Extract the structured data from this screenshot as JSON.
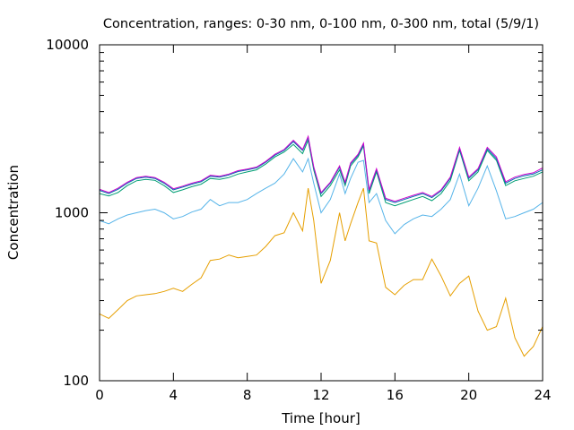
{
  "chart_data": {
    "type": "line",
    "title": "Concentration, ranges: 0-30 nm, 0-100 nm, 0-300 nm, total (5/9/1)",
    "xlabel": "Time [hour]",
    "ylabel": "Concentration",
    "xlim": [
      0,
      24
    ],
    "ylim": [
      100,
      10000
    ],
    "yscale": "log",
    "grid": false,
    "legend": "none",
    "xticks": [
      0,
      4,
      8,
      12,
      16,
      20,
      24
    ],
    "xtick_labels": [
      "0",
      "4",
      "8",
      "12",
      "16",
      "20",
      "24"
    ],
    "yticks": [
      100,
      1000,
      10000
    ],
    "ytick_labels": [
      "100",
      "1000",
      "10000"
    ],
    "series": [
      {
        "color": "#e69f00",
        "x": [
          0,
          0.5,
          1,
          1.5,
          2,
          2.5,
          3,
          3.5,
          4,
          4.5,
          5,
          5.5,
          6,
          6.5,
          7,
          7.5,
          8,
          8.5,
          9,
          9.5,
          10,
          10.5,
          11,
          11.3,
          11.6,
          12,
          12.5,
          13,
          13.3,
          13.6,
          14,
          14.3,
          14.6,
          15,
          15.5,
          16,
          16.5,
          17,
          17.5,
          18,
          18.5,
          19,
          19.5,
          20,
          20.5,
          21,
          21.5,
          22,
          22.5,
          23,
          23.5,
          24
        ],
        "y": [
          250,
          235,
          265,
          300,
          320,
          325,
          330,
          340,
          355,
          340,
          375,
          410,
          520,
          530,
          560,
          540,
          550,
          560,
          630,
          730,
          760,
          1000,
          780,
          1400,
          900,
          380,
          520,
          1000,
          680,
          860,
          1150,
          1400,
          680,
          660,
          360,
          325,
          370,
          400,
          400,
          530,
          420,
          320,
          380,
          420,
          260,
          200,
          210,
          310,
          180,
          140,
          160,
          210
        ]
      },
      {
        "color": "#56b4e9",
        "x": [
          0,
          0.5,
          1,
          1.5,
          2,
          2.5,
          3,
          3.5,
          4,
          4.5,
          5,
          5.5,
          6,
          6.5,
          7,
          7.5,
          8,
          8.5,
          9,
          9.5,
          10,
          10.5,
          11,
          11.3,
          11.6,
          12,
          12.5,
          13,
          13.3,
          13.6,
          14,
          14.3,
          14.6,
          15,
          15.5,
          16,
          16.5,
          17,
          17.5,
          18,
          18.5,
          19,
          19.5,
          20,
          20.5,
          21,
          21.5,
          22,
          22.5,
          23,
          23.5,
          24
        ],
        "y": [
          900,
          860,
          920,
          970,
          1000,
          1030,
          1050,
          1000,
          920,
          950,
          1010,
          1050,
          1200,
          1100,
          1150,
          1150,
          1200,
          1300,
          1400,
          1500,
          1700,
          2100,
          1750,
          2100,
          1500,
          1000,
          1200,
          1700,
          1300,
          1600,
          2000,
          2050,
          1150,
          1300,
          900,
          750,
          850,
          920,
          970,
          950,
          1050,
          1200,
          1700,
          1100,
          1400,
          1900,
          1350,
          920,
          950,
          1000,
          1050,
          1150
        ]
      },
      {
        "color": "#009e73",
        "x": [
          0,
          0.5,
          1,
          1.5,
          2,
          2.5,
          3,
          3.5,
          4,
          4.5,
          5,
          5.5,
          6,
          6.5,
          7,
          7.5,
          8,
          8.5,
          9,
          9.5,
          10,
          10.5,
          11,
          11.3,
          11.6,
          12,
          12.5,
          13,
          13.3,
          13.6,
          14,
          14.3,
          14.6,
          15,
          15.5,
          16,
          16.5,
          17,
          17.5,
          18,
          18.5,
          19,
          19.5,
          20,
          20.5,
          21,
          21.5,
          22,
          22.5,
          23,
          23.5,
          24
        ],
        "y": [
          1300,
          1260,
          1320,
          1450,
          1550,
          1580,
          1560,
          1450,
          1320,
          1370,
          1430,
          1480,
          1600,
          1580,
          1620,
          1700,
          1750,
          1800,
          1950,
          2150,
          2300,
          2550,
          2250,
          2700,
          1800,
          1250,
          1450,
          1800,
          1450,
          1900,
          2150,
          2500,
          1300,
          1750,
          1150,
          1100,
          1150,
          1200,
          1250,
          1180,
          1300,
          1550,
          2350,
          1550,
          1750,
          2350,
          2050,
          1450,
          1550,
          1600,
          1650,
          1750
        ]
      },
      {
        "color": "#0072b2",
        "x": [
          0,
          0.5,
          1,
          1.5,
          2,
          2.5,
          3,
          3.5,
          4,
          4.5,
          5,
          5.5,
          6,
          6.5,
          7,
          7.5,
          8,
          8.5,
          9,
          9.5,
          10,
          10.5,
          11,
          11.3,
          11.6,
          12,
          12.5,
          13,
          13.3,
          13.6,
          14,
          14.3,
          14.6,
          15,
          15.5,
          16,
          16.5,
          17,
          17.5,
          18,
          18.5,
          19,
          19.5,
          20,
          20.5,
          21,
          21.5,
          22,
          22.5,
          23,
          23.5,
          24
        ],
        "y": [
          1360,
          1300,
          1380,
          1500,
          1600,
          1630,
          1600,
          1500,
          1370,
          1420,
          1480,
          1530,
          1650,
          1630,
          1680,
          1760,
          1800,
          1850,
          2000,
          2200,
          2350,
          2650,
          2350,
          2800,
          1850,
          1300,
          1500,
          1870,
          1500,
          1950,
          2200,
          2550,
          1350,
          1800,
          1200,
          1150,
          1200,
          1250,
          1300,
          1230,
          1350,
          1600,
          2400,
          1600,
          1800,
          2400,
          2100,
          1500,
          1600,
          1660,
          1700,
          1800
        ]
      },
      {
        "color": "#cc00cc",
        "x": [
          0,
          0.5,
          1,
          1.5,
          2,
          2.5,
          3,
          3.5,
          4,
          4.5,
          5,
          5.5,
          6,
          6.5,
          7,
          7.5,
          8,
          8.5,
          9,
          9.5,
          10,
          10.5,
          11,
          11.3,
          11.6,
          12,
          12.5,
          13,
          13.3,
          13.6,
          14,
          14.3,
          14.6,
          15,
          15.5,
          16,
          16.5,
          17,
          17.5,
          18,
          18.5,
          19,
          19.5,
          20,
          20.5,
          21,
          21.5,
          22,
          22.5,
          23,
          23.5,
          24
        ],
        "y": [
          1380,
          1320,
          1400,
          1520,
          1620,
          1650,
          1620,
          1520,
          1390,
          1440,
          1500,
          1550,
          1670,
          1650,
          1700,
          1780,
          1820,
          1870,
          2020,
          2230,
          2380,
          2700,
          2380,
          2850,
          1880,
          1320,
          1520,
          1900,
          1520,
          1980,
          2230,
          2600,
          1370,
          1830,
          1220,
          1170,
          1220,
          1270,
          1320,
          1250,
          1370,
          1630,
          2450,
          1630,
          1830,
          2450,
          2150,
          1530,
          1630,
          1690,
          1730,
          1850
        ]
      }
    ]
  }
}
